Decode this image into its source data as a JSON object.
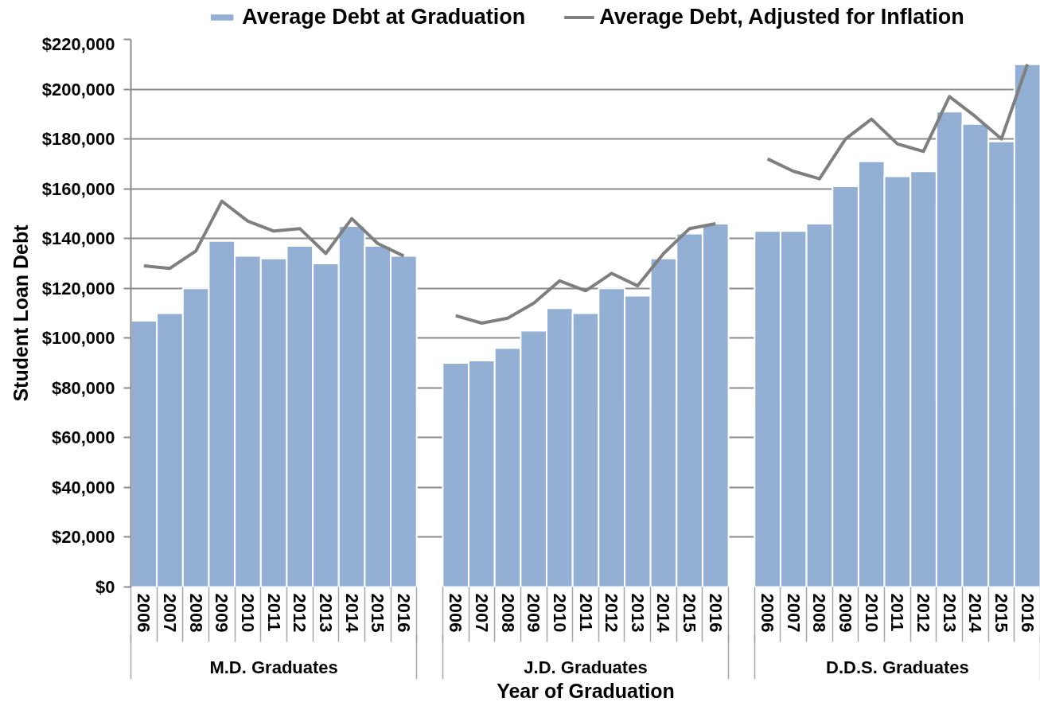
{
  "chart_data": {
    "type": "bar",
    "xlabel": "Year of Graduation",
    "ylabel": "Student Loan Debt",
    "categories": [
      "2006",
      "2007",
      "2008",
      "2009",
      "2010",
      "2011",
      "2012",
      "2013",
      "2014",
      "2015",
      "2016",
      null,
      "2006",
      "2007",
      "2008",
      "2009",
      "2010",
      "2011",
      "2012",
      "2013",
      "2014",
      "2015",
      "2016",
      null,
      "2006",
      "2007",
      "2008",
      "2009",
      "2010",
      "2011",
      "2012",
      "2013",
      "2014",
      "2015",
      "2016"
    ],
    "annotations": [
      "M.D. Graduates",
      "J.D. Graduates",
      "D.D.S. Graduates"
    ],
    "series": [
      {
        "name": "Average Debt at Graduation",
        "color": "#93afd3",
        "values": [
          107000,
          110000,
          120000,
          139000,
          133000,
          132000,
          137000,
          130000,
          145000,
          137000,
          133000,
          null,
          90000,
          91000,
          96000,
          103000,
          112000,
          110000,
          120000,
          117000,
          132000,
          142000,
          146000,
          null,
          143000,
          143000,
          146000,
          161000,
          171000,
          165000,
          167000,
          191000,
          186000,
          179000,
          210000
        ]
      },
      {
        "name": "Average Debt, Adjusted for Inflation",
        "type": "line",
        "color": "#7f7f7f",
        "values": [
          129000,
          128000,
          135000,
          155000,
          147000,
          143000,
          144000,
          134000,
          148000,
          138000,
          133000,
          null,
          109000,
          106000,
          108000,
          114000,
          123000,
          119000,
          126000,
          121000,
          134000,
          144000,
          146000,
          null,
          172000,
          167000,
          164000,
          180000,
          188000,
          178000,
          175000,
          197000,
          189000,
          180000,
          210000
        ]
      }
    ],
    "ylim": [
      0,
      220000
    ],
    "yticks": [
      {
        "value": 0,
        "label": "$0"
      },
      {
        "value": 20000,
        "label": "$20,000"
      },
      {
        "value": 40000,
        "label": "$40,000"
      },
      {
        "value": 60000,
        "label": "$60,000"
      },
      {
        "value": 80000,
        "label": "$80,000"
      },
      {
        "value": 100000,
        "label": "$100,000"
      },
      {
        "value": 120000,
        "label": "$120,000"
      },
      {
        "value": 140000,
        "label": "$140,000"
      },
      {
        "value": 160000,
        "label": "$160,000"
      },
      {
        "value": 180000,
        "label": "$180,000"
      },
      {
        "value": 200000,
        "label": "$200,000"
      },
      {
        "value": 220000,
        "label": "$220,000"
      }
    ],
    "grid": "y",
    "legend": "top"
  }
}
